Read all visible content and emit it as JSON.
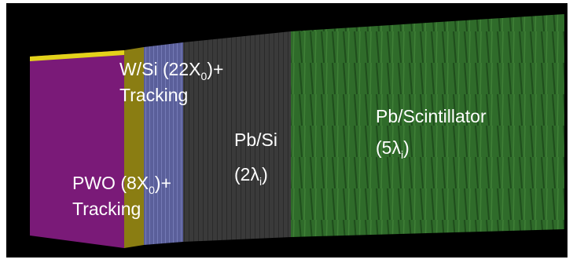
{
  "labels": {
    "wsi": {
      "line1": [
        "W/Si (22X",
        "0",
        ")+"
      ],
      "line2": "Tracking"
    },
    "pbsi": {
      "line1": "Pb/Si",
      "line2": [
        "(2λ",
        "i",
        ")"
      ]
    },
    "pbscint": {
      "line1": "Pb/Scintillator",
      "line2": [
        "(5λ",
        "i",
        ")"
      ]
    },
    "pwo": {
      "line1": [
        "PWO (8X",
        "0",
        ")+"
      ],
      "line2": "Tracking"
    }
  }
}
